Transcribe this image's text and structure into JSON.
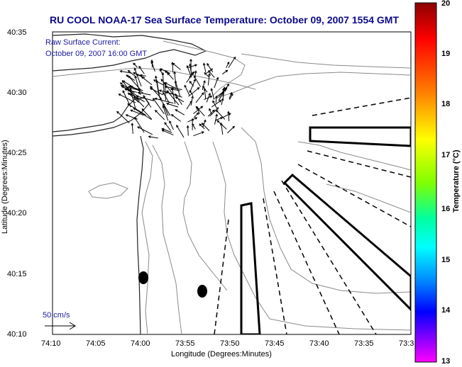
{
  "title": "RU COOL  NOAA-17  Sea Surface Temperature:  October 09, 2007 1554 GMT",
  "overlay": {
    "line1": "Raw Surface Current:",
    "line2": "October 09, 2007 16:00 GMT"
  },
  "scale_label": "50 cm/s",
  "x_axis": {
    "label": "Longitude (Degrees:Minutes)",
    "ticks": [
      "74:10",
      "74:05",
      "74:00",
      "73:55",
      "73:50",
      "73:45",
      "73:40",
      "73:35",
      "73:3"
    ]
  },
  "y_axis": {
    "label": "Latitude (Degrees:Minutes)",
    "ticks": [
      "40:35",
      "40:30",
      "40:25",
      "40:20",
      "40:15",
      "40:10"
    ]
  },
  "colorbar": {
    "title": "Temperature (°C)",
    "ticks": [
      "20",
      "19",
      "18",
      "17",
      "16",
      "15",
      "14",
      "13"
    ],
    "colors": [
      "#8b0000",
      "#ff0000",
      "#ff8000",
      "#ffff00",
      "#80ff00",
      "#00ffa0",
      "#00ffff",
      "#0080ff",
      "#0000ff",
      "#8000ff",
      "#ff00ff"
    ]
  }
}
